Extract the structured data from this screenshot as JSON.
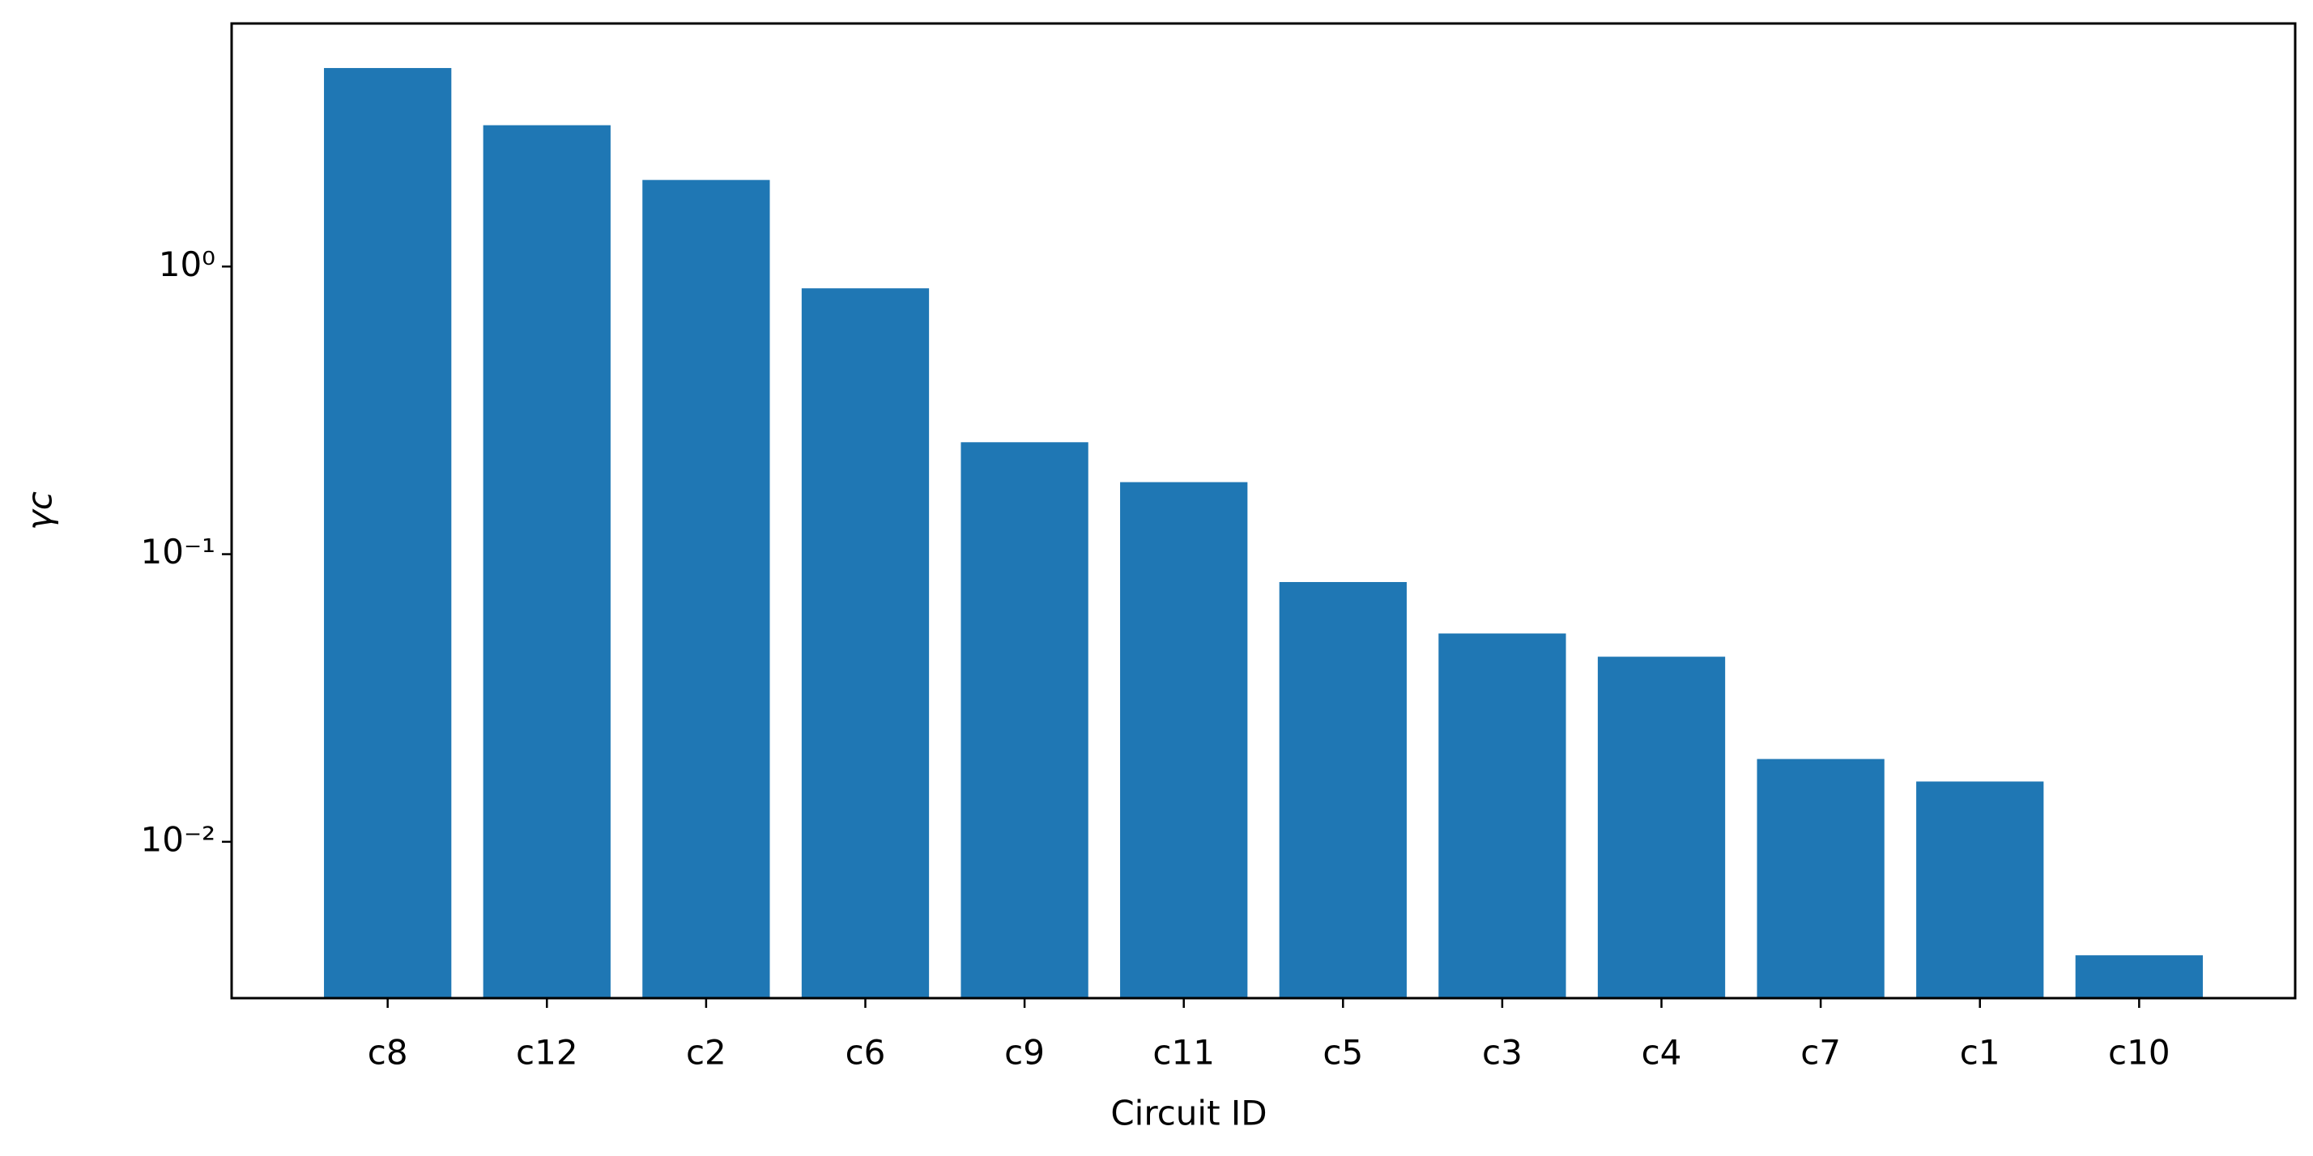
{
  "chart_data": {
    "type": "bar",
    "x_label": "Circuit ID",
    "y_label": "γc",
    "categories": [
      "c8",
      "c12",
      "c2",
      "c6",
      "c9",
      "c11",
      "c5",
      "c3",
      "c4",
      "c7",
      "c1",
      "c10"
    ],
    "values": [
      4.9,
      3.1,
      2.0,
      0.84,
      0.245,
      0.178,
      0.08,
      0.053,
      0.044,
      0.0194,
      0.0162,
      0.00403
    ],
    "color": "#1f77b4",
    "log_y": true,
    "ylim": [
      0.00286,
      7.0
    ],
    "yticks": [
      {
        "value": 0.01,
        "label": "10⁻²"
      },
      {
        "value": 0.1,
        "label": "10⁻¹"
      },
      {
        "value": 1,
        "label": "10⁰"
      }
    ]
  }
}
